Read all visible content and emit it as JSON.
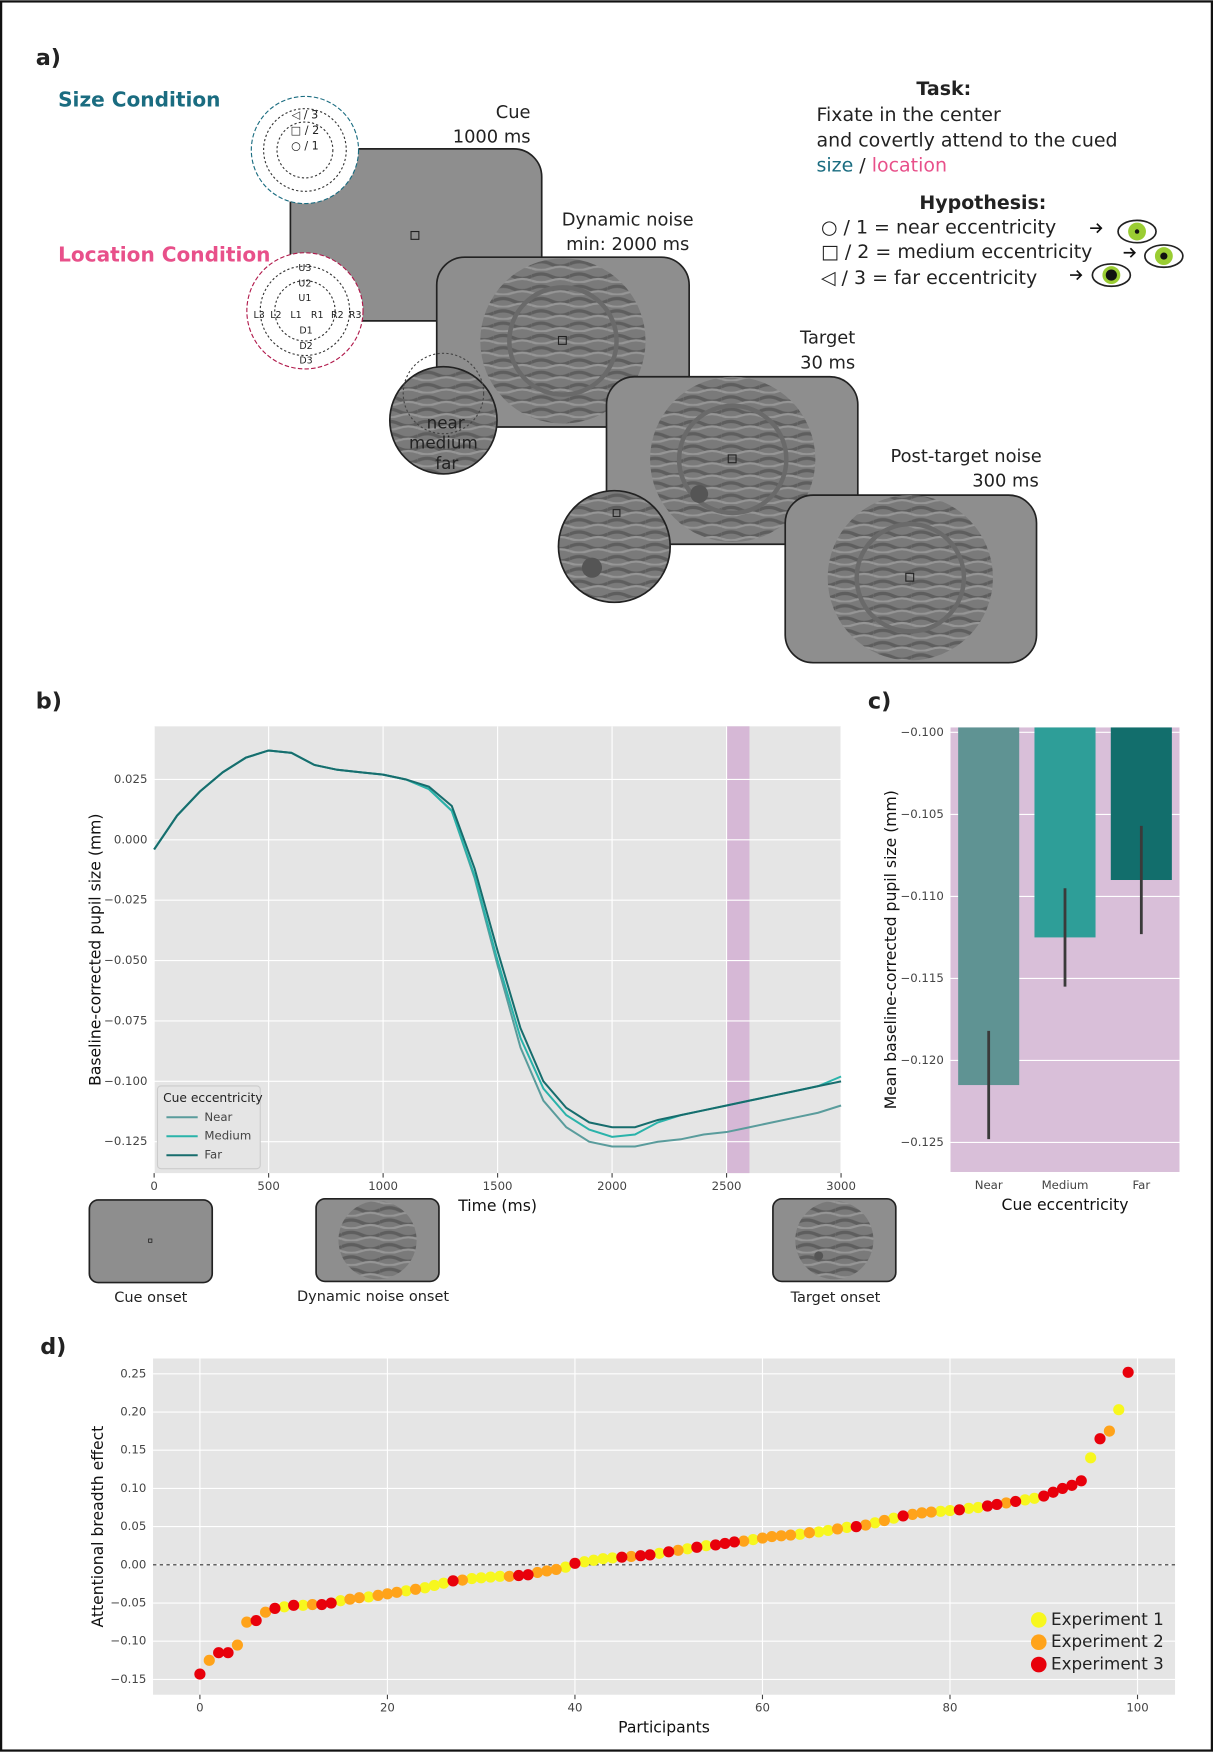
{
  "figure": {
    "panels": [
      "a)",
      "b)",
      "c)",
      "d)"
    ],
    "diagram": {
      "size_condition": "Size Condition",
      "location_condition": "Location Condition",
      "size_rings": [
        "◁ / 3",
        "□ / 2",
        "○ / 1"
      ],
      "location_labels": [
        "U3",
        "U2",
        "U1",
        "L3",
        "L2",
        "L1",
        "R1",
        "R2",
        "R3",
        "D1",
        "D2",
        "D3"
      ],
      "ecc_words": [
        "near",
        "medium",
        "far"
      ],
      "screens": [
        {
          "title": "Cue",
          "duration": "1000 ms"
        },
        {
          "title": "Dynamic noise",
          "duration": "min: 2000 ms"
        },
        {
          "title": "Target",
          "duration": "30 ms"
        },
        {
          "title": "Post-target noise",
          "duration": "300 ms"
        }
      ],
      "task_title": "Task:",
      "task_lines": [
        "Fixate in the center",
        "and covertly attend to the cued"
      ],
      "task_size": "size",
      "task_sep": "/",
      "task_location": "location",
      "hypothesis_title": "Hypothesis:",
      "hypotheses": [
        "○ / 1 = near eccentricity",
        "□ / 2 = medium eccentricity",
        "◁ / 3 = far eccentricity"
      ]
    },
    "thumbnails": [
      "Cue onset",
      "Dynamic noise onset",
      "Target onset"
    ]
  },
  "chart_data": [
    {
      "type": "line",
      "x_label": "Time (ms)",
      "y_label": "Baseline-corrected pupil size (mm)",
      "x": [
        0,
        100,
        200,
        300,
        400,
        500,
        600,
        700,
        800,
        900,
        1000,
        1100,
        1200,
        1300,
        1400,
        1500,
        1600,
        1700,
        1800,
        1900,
        2000,
        2100,
        2200,
        2300,
        2400,
        2500,
        2600,
        2700,
        2800,
        2900,
        3000
      ],
      "series": [
        {
          "name": "Near",
          "color": "#5a9c9c",
          "values": [
            -0.004,
            0.01,
            0.02,
            0.028,
            0.034,
            0.037,
            0.036,
            0.031,
            0.029,
            0.028,
            0.027,
            0.025,
            0.021,
            0.012,
            -0.016,
            -0.052,
            -0.086,
            -0.108,
            -0.119,
            -0.125,
            -0.127,
            -0.127,
            -0.125,
            -0.124,
            -0.122,
            -0.121,
            -0.119,
            -0.117,
            -0.115,
            -0.113,
            -0.11
          ]
        },
        {
          "name": "Medium",
          "color": "#2ab3aa",
          "values": [
            -0.004,
            0.01,
            0.02,
            0.028,
            0.034,
            0.037,
            0.036,
            0.031,
            0.029,
            0.028,
            0.027,
            0.025,
            0.021,
            0.012,
            -0.015,
            -0.05,
            -0.082,
            -0.103,
            -0.114,
            -0.12,
            -0.123,
            -0.122,
            -0.117,
            -0.114,
            -0.112,
            -0.11,
            -0.108,
            -0.106,
            -0.104,
            -0.102,
            -0.098
          ]
        },
        {
          "name": "Far",
          "color": "#176d6d",
          "values": [
            -0.004,
            0.01,
            0.02,
            0.028,
            0.034,
            0.037,
            0.036,
            0.031,
            0.029,
            0.028,
            0.027,
            0.025,
            0.022,
            0.014,
            -0.012,
            -0.046,
            -0.078,
            -0.1,
            -0.111,
            -0.117,
            -0.119,
            -0.119,
            -0.116,
            -0.114,
            -0.112,
            -0.11,
            -0.108,
            -0.106,
            -0.104,
            -0.102,
            -0.1
          ]
        }
      ],
      "legend_title": "Cue eccentricity",
      "legend": "lower left",
      "highlight_x": [
        2500,
        2600
      ],
      "highlight_color": "#d6b8d6",
      "xlim": [
        0,
        3000
      ],
      "xticks": [
        0,
        500,
        1000,
        1500,
        2000,
        2500,
        3000
      ],
      "ylim": [
        -0.138,
        0.047
      ],
      "yticks": [
        0.025,
        {
          "value": 0,
          "label": "0.000"
        },
        {
          "value": -0.025,
          "label": "−0.025"
        },
        {
          "value": -0.05,
          "label": "−0.050"
        },
        {
          "value": -0.075,
          "label": "−0.075"
        },
        {
          "value": -0.1,
          "label": "−0.100"
        },
        {
          "value": -0.125,
          "label": "−0.125"
        }
      ],
      "grid": true,
      "background": "#e5e5e5"
    },
    {
      "type": "bar",
      "x_label": "Cue eccentricity",
      "y_label": "Mean baseline-corrected pupil size (mm)",
      "categories": [
        "Near",
        "Medium",
        "Far"
      ],
      "values": [
        -0.1215,
        -0.1125,
        -0.109
      ],
      "errors": [
        0.0033,
        0.003,
        0.0033
      ],
      "colors": [
        "#5f9393",
        "#2e9e98",
        "#126e6c"
      ],
      "ylim": [
        -0.1268,
        -0.0997
      ],
      "yticks": [
        {
          "value": -0.1,
          "label": "−0.100"
        },
        {
          "value": -0.105,
          "label": "−0.105"
        },
        {
          "value": -0.11,
          "label": "−0.110"
        },
        {
          "value": -0.115,
          "label": "−0.115"
        },
        {
          "value": -0.12,
          "label": "−0.120"
        },
        {
          "value": -0.125,
          "label": "−0.125"
        }
      ],
      "grid": true,
      "background": "#d9bfd9"
    },
    {
      "type": "scatter",
      "x_label": "Participants",
      "y_label": "Attentional breadth effect",
      "series": [
        {
          "name": "Experiment 1",
          "color": "#f7f71e",
          "x": [
            9,
            11,
            15,
            18,
            22,
            24,
            25,
            26,
            29,
            30,
            31,
            32,
            39,
            41,
            42,
            43,
            44,
            49,
            52,
            54,
            59,
            64,
            66,
            67,
            69,
            72,
            74,
            79,
            80,
            82,
            83,
            88,
            89,
            95,
            98
          ],
          "values": [
            -0.055,
            -0.053,
            -0.047,
            -0.042,
            -0.034,
            -0.03,
            -0.027,
            -0.024,
            -0.018,
            -0.017,
            -0.016,
            -0.015,
            -0.003,
            0.004,
            0.006,
            0.008,
            0.009,
            0.015,
            0.021,
            0.025,
            0.033,
            0.04,
            0.043,
            0.045,
            0.049,
            0.055,
            0.061,
            0.07,
            0.071,
            0.074,
            0.075,
            0.085,
            0.087,
            0.14,
            0.203
          ]
        },
        {
          "name": "Experiment 2",
          "color": "#ffa31a",
          "x": [
            1,
            4,
            5,
            7,
            12,
            16,
            17,
            19,
            20,
            21,
            23,
            28,
            33,
            36,
            37,
            38,
            46,
            51,
            58,
            60,
            61,
            62,
            63,
            65,
            68,
            71,
            73,
            76,
            77,
            78,
            86,
            97
          ],
          "values": [
            -0.125,
            -0.105,
            -0.075,
            -0.062,
            -0.052,
            -0.045,
            -0.043,
            -0.04,
            -0.038,
            -0.036,
            -0.032,
            -0.02,
            -0.015,
            -0.01,
            -0.008,
            -0.006,
            0.011,
            0.019,
            0.031,
            0.035,
            0.037,
            0.038,
            0.039,
            0.042,
            0.047,
            0.052,
            0.058,
            0.066,
            0.068,
            0.069,
            0.081,
            0.175
          ]
        },
        {
          "name": "Experiment 3",
          "color": "#e8000b",
          "x": [
            0,
            2,
            3,
            6,
            8,
            10,
            13,
            14,
            27,
            34,
            35,
            40,
            45,
            47,
            48,
            50,
            53,
            55,
            56,
            57,
            70,
            75,
            81,
            84,
            85,
            87,
            90,
            91,
            92,
            93,
            94,
            96,
            99
          ],
          "values": [
            -0.143,
            -0.115,
            -0.115,
            -0.073,
            -0.057,
            -0.053,
            -0.052,
            -0.05,
            -0.021,
            -0.014,
            -0.013,
            0.002,
            0.01,
            0.012,
            0.013,
            0.017,
            0.023,
            0.026,
            0.028,
            0.03,
            0.05,
            0.064,
            0.072,
            0.077,
            0.079,
            0.083,
            0.09,
            0.095,
            0.1,
            0.104,
            0.11,
            0.165,
            0.252
          ]
        }
      ],
      "legend": "lower right",
      "hline": 0,
      "xlim": [
        -5,
        104
      ],
      "xticks": [
        0,
        20,
        40,
        60,
        80,
        100
      ],
      "ylim": [
        -0.17,
        0.27
      ],
      "yticks": [
        0.25,
        {
          "value": 0.2,
          "label": "0.20"
        },
        0.15,
        {
          "value": 0.1,
          "label": "0.10"
        },
        0.05,
        {
          "value": 0,
          "label": "0.00"
        },
        {
          "value": -0.05,
          "label": "−0.05"
        },
        {
          "value": -0.1,
          "label": "−0.10"
        },
        {
          "value": -0.15,
          "label": "−0.15"
        }
      ],
      "grid": true,
      "background": "#e5e5e5"
    }
  ]
}
